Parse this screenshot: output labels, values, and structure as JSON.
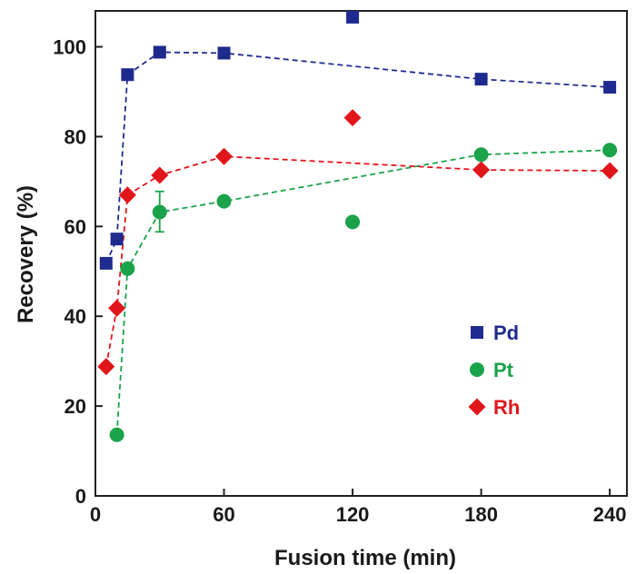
{
  "chart_data": {
    "type": "scatter",
    "xlabel": "Fusion time (min)",
    "ylabel": "Recovery (%)",
    "xlim": [
      0,
      248
    ],
    "ylim": [
      0,
      108
    ],
    "xticks": [
      0,
      60,
      120,
      180,
      240
    ],
    "yticks": [
      0,
      20,
      40,
      60,
      80,
      100
    ],
    "legend_position": "right-center",
    "series": [
      {
        "name": "Pd",
        "marker": "square",
        "color": "#1f2a8f",
        "line_points": [
          [
            5,
            51.8
          ],
          [
            10,
            57.2
          ],
          [
            15,
            93.8
          ],
          [
            30,
            98.8
          ],
          [
            60,
            98.6
          ],
          [
            180,
            92.8
          ],
          [
            240,
            91.0
          ]
        ],
        "outliers": [
          [
            120,
            106.6
          ]
        ]
      },
      {
        "name": "Pt",
        "marker": "circle",
        "color": "#1aa34a",
        "line_points": [
          [
            10,
            13.6
          ],
          [
            15,
            50.6
          ],
          [
            30,
            63.2
          ],
          [
            60,
            65.6
          ],
          [
            180,
            76.0
          ],
          [
            240,
            77.0
          ]
        ],
        "outliers": [
          [
            120,
            61.0
          ]
        ],
        "error_bars": [
          {
            "x": 30,
            "y": 63.2,
            "low": 58.8,
            "high": 67.8
          }
        ]
      },
      {
        "name": "Rh",
        "marker": "diamond",
        "color": "#e0161b",
        "line_points": [
          [
            5,
            28.8
          ],
          [
            10,
            41.8
          ],
          [
            15,
            67.0
          ],
          [
            30,
            71.4
          ],
          [
            60,
            75.6
          ],
          [
            180,
            72.6
          ],
          [
            240,
            72.4
          ]
        ],
        "outliers": [
          [
            120,
            84.2
          ]
        ]
      }
    ]
  }
}
